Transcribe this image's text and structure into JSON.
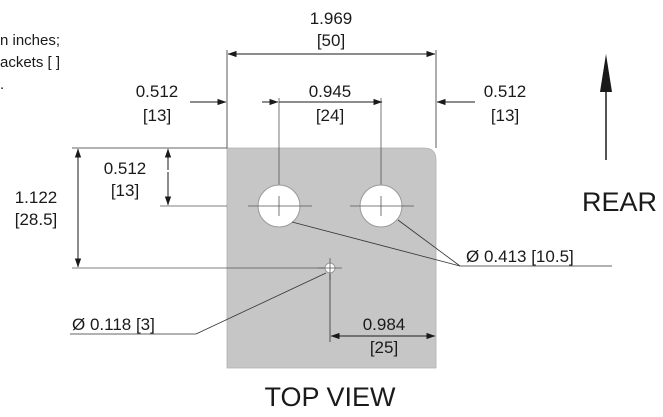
{
  "note": {
    "line1": "n inches;",
    "line2": "ackets [ ]",
    "line3": "."
  },
  "dimensions": {
    "overall_width": {
      "inches": "1.969",
      "mm": "[50]"
    },
    "left_margin": {
      "inches": "0.512",
      "mm": "[13]"
    },
    "hole_spacing": {
      "inches": "0.945",
      "mm": "[24]"
    },
    "right_margin": {
      "inches": "0.512",
      "mm": "[13]"
    },
    "top_to_holes": {
      "inches": "0.512",
      "mm": "[13]"
    },
    "top_to_pin": {
      "inches": "1.122",
      "mm": "[28.5]"
    },
    "pin_offset": {
      "inches": "0.984",
      "mm": "[25]"
    },
    "large_hole_dia": "Ø 0.413 [10.5]",
    "small_hole_dia": "Ø 0.118 [3]"
  },
  "labels": {
    "rear": "REAR",
    "view_title": "TOP VIEW"
  },
  "colors": {
    "plate": "#c6c6c6",
    "line": "#1a1a1a",
    "background": "#ffffff"
  }
}
